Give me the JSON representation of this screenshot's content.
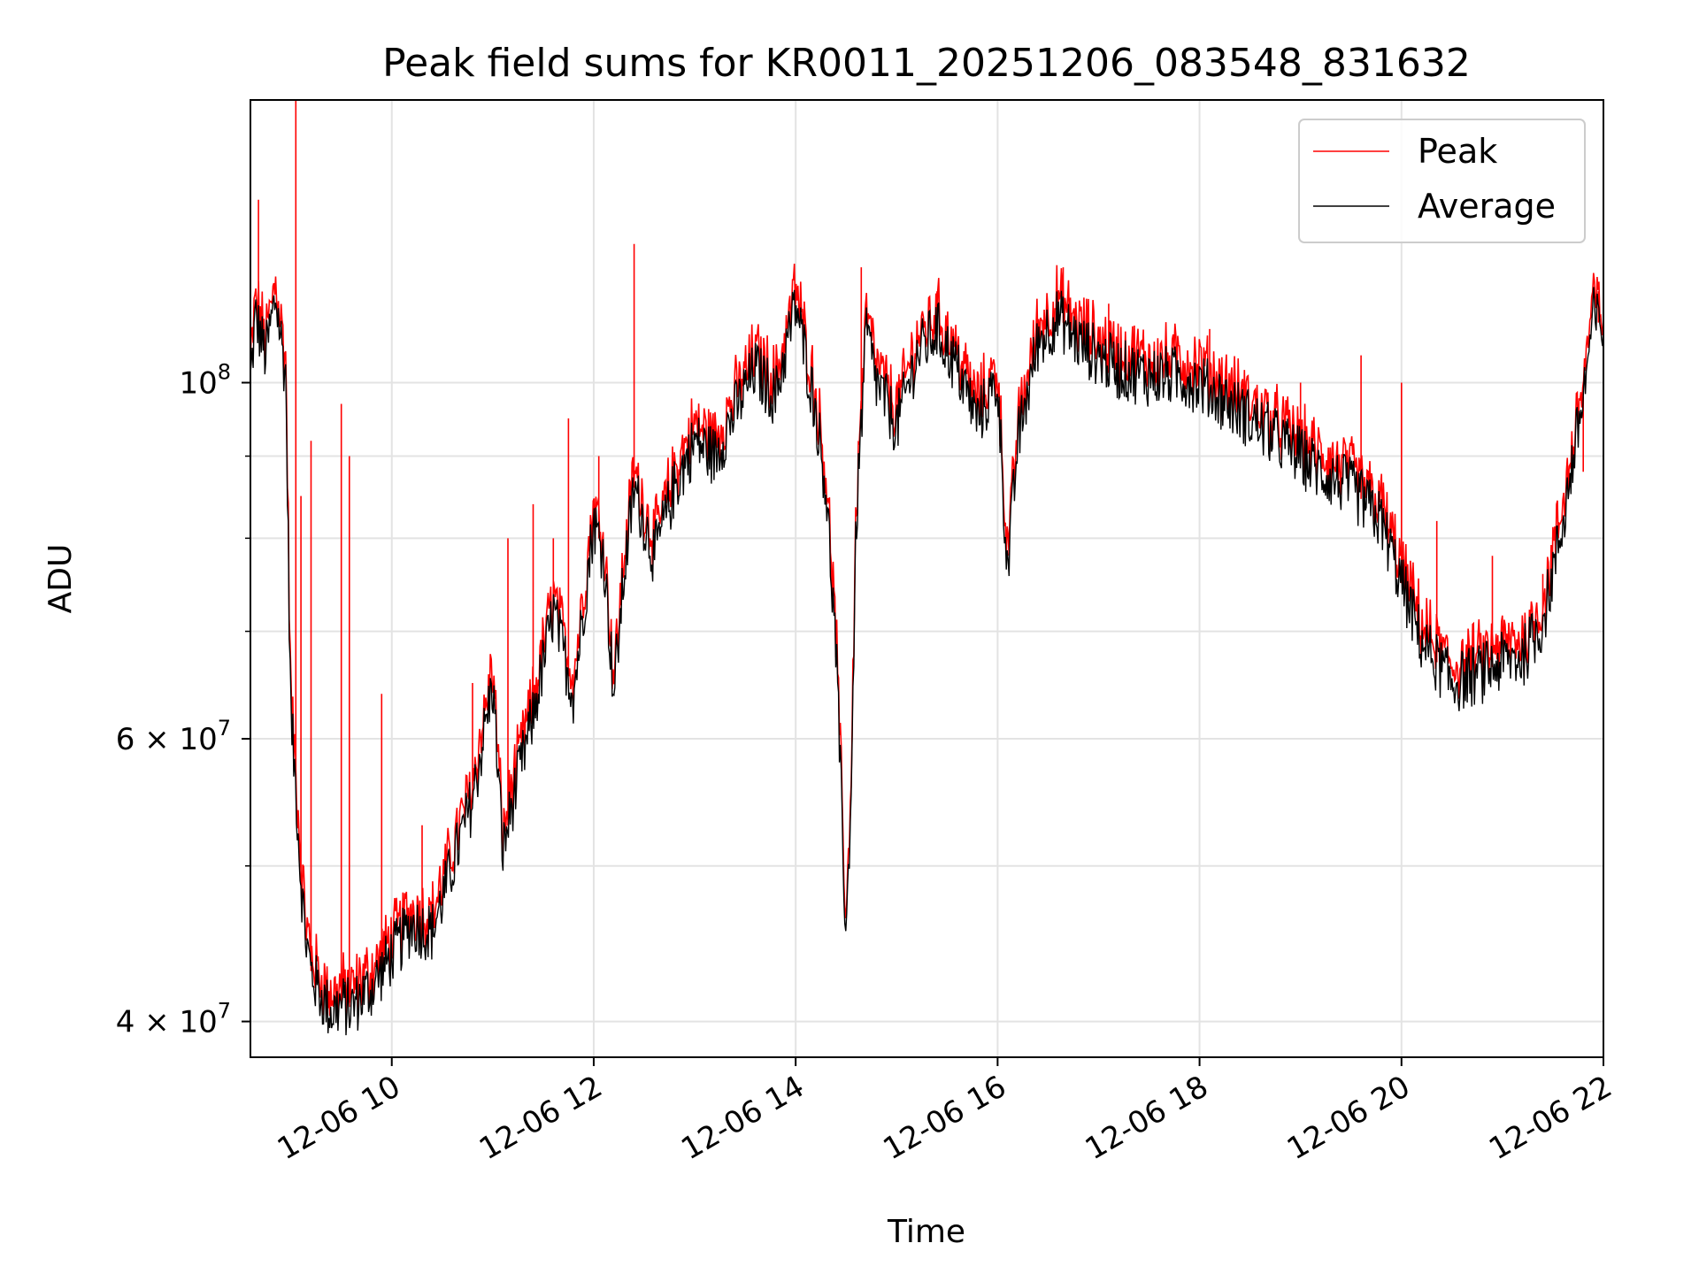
{
  "chart_data": {
    "type": "line",
    "title": "Peak field sums for KR0011_20251206_083548_831632",
    "xlabel": "Time",
    "ylabel": "ADU",
    "yscale": "log",
    "ylim": [
      38000000,
      150000000
    ],
    "xlim_hours": [
      8.6,
      22.0
    ],
    "x_ticks": [
      {
        "hour": 10,
        "label": "12-06 10"
      },
      {
        "hour": 12,
        "label": "12-06 12"
      },
      {
        "hour": 14,
        "label": "12-06 14"
      },
      {
        "hour": 16,
        "label": "12-06 16"
      },
      {
        "hour": 18,
        "label": "12-06 18"
      },
      {
        "hour": 20,
        "label": "12-06 20"
      },
      {
        "hour": 22,
        "label": "12-06 22"
      }
    ],
    "y_ticks_major": [
      {
        "value": 40000000,
        "base": "4 × 10",
        "exp": "7"
      },
      {
        "value": 60000000,
        "base": "6 × 10",
        "exp": "7"
      },
      {
        "value": 100000000,
        "base": "10",
        "exp": "8"
      }
    ],
    "y_ticks_minor": [
      50000000,
      70000000,
      80000000,
      90000000
    ],
    "grid": true,
    "legend_position": "top-right",
    "colors": {
      "peak": "#ff0000",
      "average": "#000000",
      "grid": "#e3e3e3"
    },
    "series": [
      {
        "name": "Average",
        "color": "#000000",
        "points": [
          [
            8.6,
            100000000
          ],
          [
            8.65,
            110000000
          ],
          [
            8.75,
            104000000
          ],
          [
            8.85,
            113000000
          ],
          [
            8.95,
            101000000
          ],
          [
            9.0,
            62000000
          ],
          [
            9.05,
            56000000
          ],
          [
            9.1,
            49000000
          ],
          [
            9.15,
            45000000
          ],
          [
            9.2,
            43000000
          ],
          [
            9.3,
            41500000
          ],
          [
            9.4,
            40500000
          ],
          [
            9.5,
            41000000
          ],
          [
            9.6,
            40800000
          ],
          [
            9.7,
            41500000
          ],
          [
            9.8,
            42000000
          ],
          [
            9.9,
            43000000
          ],
          [
            10.0,
            44000000
          ],
          [
            10.2,
            46000000
          ],
          [
            10.4,
            45500000
          ],
          [
            10.6,
            50000000
          ],
          [
            10.8,
            55000000
          ],
          [
            11.0,
            65000000
          ],
          [
            11.1,
            51000000
          ],
          [
            11.2,
            55000000
          ],
          [
            11.4,
            62000000
          ],
          [
            11.6,
            72000000
          ],
          [
            11.8,
            64000000
          ],
          [
            12.0,
            82000000
          ],
          [
            12.1,
            78000000
          ],
          [
            12.2,
            64000000
          ],
          [
            12.3,
            76000000
          ],
          [
            12.4,
            86000000
          ],
          [
            12.6,
            78000000
          ],
          [
            12.8,
            86000000
          ],
          [
            13.0,
            92000000
          ],
          [
            13.2,
            90000000
          ],
          [
            13.4,
            96000000
          ],
          [
            13.6,
            102000000
          ],
          [
            13.8,
            98000000
          ],
          [
            14.0,
            112000000
          ],
          [
            14.2,
            96000000
          ],
          [
            14.3,
            86000000
          ],
          [
            14.4,
            68000000
          ],
          [
            14.5,
            45000000
          ],
          [
            14.55,
            56000000
          ],
          [
            14.6,
            82000000
          ],
          [
            14.7,
            108000000
          ],
          [
            14.8,
            100000000
          ],
          [
            15.0,
            94000000
          ],
          [
            15.2,
            104000000
          ],
          [
            15.4,
            108000000
          ],
          [
            15.6,
            102000000
          ],
          [
            15.8,
            95000000
          ],
          [
            16.0,
            100000000
          ],
          [
            16.1,
            76000000
          ],
          [
            16.2,
            92000000
          ],
          [
            16.4,
            106000000
          ],
          [
            16.6,
            110000000
          ],
          [
            16.8,
            106000000
          ],
          [
            17.0,
            104000000
          ],
          [
            17.2,
            102000000
          ],
          [
            17.5,
            101000000
          ],
          [
            17.8,
            101000000
          ],
          [
            18.0,
            100000000
          ],
          [
            18.3,
            97000000
          ],
          [
            18.6,
            94000000
          ],
          [
            18.9,
            91000000
          ],
          [
            19.2,
            88000000
          ],
          [
            19.5,
            86000000
          ],
          [
            19.8,
            82000000
          ],
          [
            20.0,
            75000000
          ],
          [
            20.2,
            69000000
          ],
          [
            20.5,
            65000000
          ],
          [
            20.8,
            66000000
          ],
          [
            21.0,
            67000000
          ],
          [
            21.2,
            67500000
          ],
          [
            21.4,
            71000000
          ],
          [
            21.6,
            82000000
          ],
          [
            21.8,
            98000000
          ],
          [
            21.9,
            110000000
          ],
          [
            22.0,
            108000000
          ]
        ]
      },
      {
        "name": "Peak",
        "color": "#ff0000",
        "spikes": [
          [
            8.68,
            130000000
          ],
          [
            9.05,
            150000000
          ],
          [
            9.1,
            85000000
          ],
          [
            9.2,
            92000000
          ],
          [
            9.5,
            97000000
          ],
          [
            9.58,
            90000000
          ],
          [
            9.9,
            64000000
          ],
          [
            10.3,
            53000000
          ],
          [
            10.8,
            65000000
          ],
          [
            11.15,
            80000000
          ],
          [
            11.4,
            84000000
          ],
          [
            11.6,
            80000000
          ],
          [
            11.75,
            95000000
          ],
          [
            12.05,
            90000000
          ],
          [
            12.4,
            122000000
          ],
          [
            14.0,
            114000000
          ],
          [
            14.65,
            118000000
          ],
          [
            15.4,
            114000000
          ],
          [
            16.65,
            118000000
          ],
          [
            17.1,
            112000000
          ],
          [
            18.1,
            108000000
          ],
          [
            19.0,
            100000000
          ],
          [
            19.6,
            104000000
          ],
          [
            20.0,
            100000000
          ],
          [
            20.35,
            82000000
          ],
          [
            20.9,
            78000000
          ],
          [
            21.4,
            76000000
          ],
          [
            21.8,
            88000000
          ],
          [
            21.95,
            114000000
          ]
        ]
      }
    ]
  }
}
